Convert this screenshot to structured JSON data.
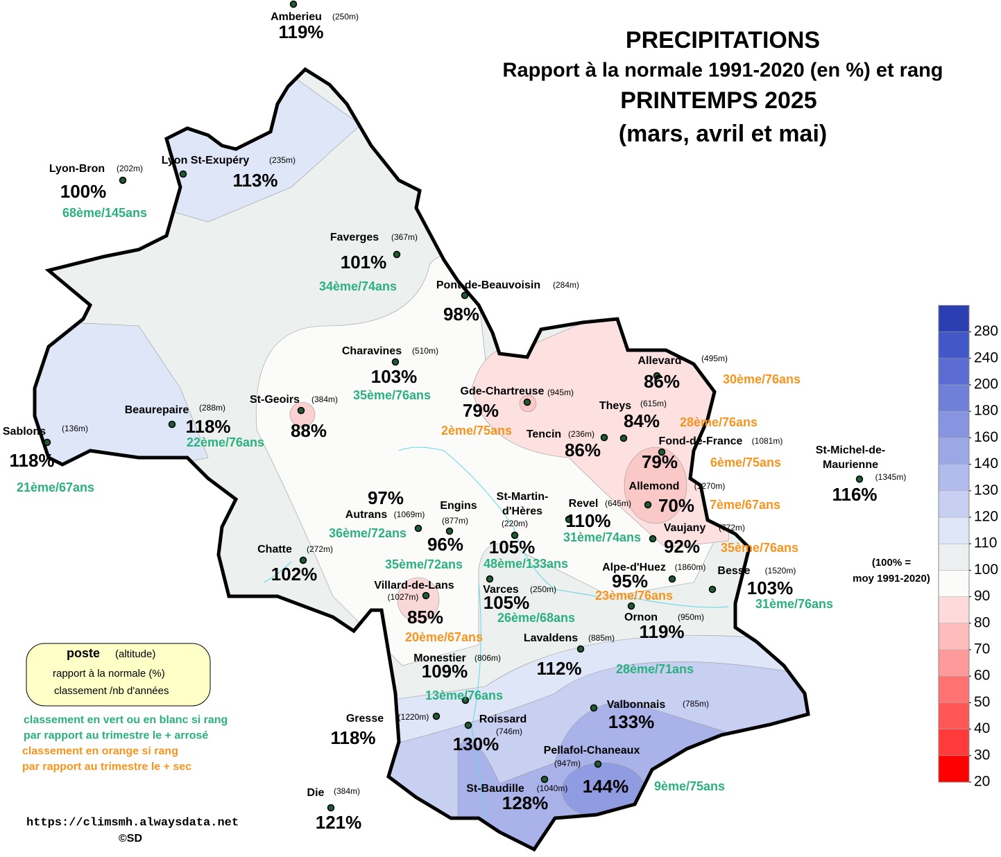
{
  "title": {
    "line1": "PRECIPITATIONS",
    "line2": "Rapport à la normale 1991-2020 (en %) et rang",
    "line3": "PRINTEMPS 2025",
    "line4": "(mars, avril et mai)"
  },
  "stations": [
    {
      "name": "Amberieu",
      "alt": "(250m)",
      "value": "119%"
    },
    {
      "name": "Lyon-Bron",
      "alt": "(202m)",
      "value": "100%",
      "rank": "68ème/145ans",
      "rank_color": "#2bb07f"
    },
    {
      "name": "Lyon St-Exupéry",
      "alt": "(235m)",
      "value": "113%"
    },
    {
      "name": "Faverges",
      "alt": "(367m)",
      "value": "101%",
      "rank": "34ème/74ans",
      "rank_color": "#2bb07f"
    },
    {
      "name": "Pont-de-Beauvoisin",
      "alt": "(284m)",
      "value": "98%"
    },
    {
      "name": "Charavines",
      "alt": "(510m)",
      "value": "103%",
      "rank": "35ème/76ans",
      "rank_color": "#2bb07f"
    },
    {
      "name": "St-Geoirs",
      "alt": "(384m)",
      "value": "88%"
    },
    {
      "name": "Beaurepaire",
      "alt": "(288m)",
      "value": "118%",
      "rank": "22ème/76ans",
      "rank_color": "#2bb07f"
    },
    {
      "name": "Sablons",
      "alt": "(136m)",
      "value": "118%",
      "rank": "21ème/67ans",
      "rank_color": "#2bb07f"
    },
    {
      "name": "Gde-Chartreuse",
      "alt": "(945m)",
      "value": "79%",
      "rank": "2ème/75ans",
      "rank_color": "#f7941d"
    },
    {
      "name": "Allevard",
      "alt": "(495m)",
      "value": "86%",
      "rank": "30ème/76ans",
      "rank_color": "#f7941d"
    },
    {
      "name": "Theys",
      "alt": "(615m)",
      "value": "84%",
      "rank": "28ème/76ans",
      "rank_color": "#f7941d"
    },
    {
      "name": "Tencin",
      "alt": "(236m)",
      "value": "86%"
    },
    {
      "name": "Fond-de-France",
      "alt": "(1081m)",
      "value": "79%",
      "rank": "6ème/75ans",
      "rank_color": "#f7941d"
    },
    {
      "name": "Allemond",
      "alt": "(1270m)",
      "value": "70%",
      "rank": "7ème/67ans",
      "rank_color": "#f7941d"
    },
    {
      "name": "Vaujany",
      "alt": "(772m)",
      "value": "92%",
      "rank": "35ème/76ans",
      "rank_color": "#f7941d"
    },
    {
      "name": [
        "St-Michel-de-",
        "Maurienne"
      ],
      "alt": "(1345m)",
      "value": "116%"
    },
    {
      "name": "Revel",
      "alt": "(645m)",
      "value": "110%",
      "rank": "31ème/74ans",
      "rank_color": "#2bb07f"
    },
    {
      "name": [
        "St-Martin-",
        "d'Hères"
      ],
      "alt": "(220m)",
      "value": "105%",
      "rank": "48ème/133ans",
      "rank_color": "#2bb07f"
    },
    {
      "name": "Autrans",
      "alt": "(1069m)",
      "value": "97%",
      "rank": "36ème/72ans",
      "rank_color": "#2bb07f"
    },
    {
      "name": "Engins",
      "alt": "(877m)",
      "value": "96%",
      "rank": "35ème/72ans",
      "rank_color": "#2bb07f"
    },
    {
      "name": "Chatte",
      "alt": "(272m)",
      "value": "102%"
    },
    {
      "name": "Alpe-d'Huez",
      "alt": "(1860m)",
      "value": "95%",
      "rank": "23ème/76ans",
      "rank_color": "#f7941d"
    },
    {
      "name": "Besse",
      "alt": "(1520m)",
      "value": "103%",
      "rank": "31ème/76ans",
      "rank_color": "#2bb07f"
    },
    {
      "name": "Villard-de-Lans",
      "alt": "(1027m)",
      "value": "85%",
      "rank": "20ème/67ans",
      "rank_color": "#f7941d"
    },
    {
      "name": "Varces",
      "alt": "(250m)",
      "value": "105%",
      "rank": "26ème/68ans",
      "rank_color": "#2bb07f"
    },
    {
      "name": "Ornon",
      "alt": "(950m)",
      "value": "119%"
    },
    {
      "name": "Lavaldens",
      "alt": "(885m)",
      "value": "112%",
      "rank": "28ème/71ans",
      "rank_color": "#2bb07f"
    },
    {
      "name": "Monestier",
      "alt": "(806m)",
      "value": "109%",
      "rank": "13ème/76ans",
      "rank_color": "#2bb07f"
    },
    {
      "name": "Gresse",
      "alt": "(1220m)",
      "value": "118%"
    },
    {
      "name": "Roissard",
      "alt": "(746m)",
      "value": "130%"
    },
    {
      "name": "Valbonnais",
      "alt": "(785m)",
      "value": "133%"
    },
    {
      "name": "Pellafol-Chaneaux",
      "alt": "(947m)",
      "value": "144%",
      "rank": "9ème/75ans",
      "rank_color": "#2bb07f"
    },
    {
      "name": "St-Baudille",
      "alt": "(1040m)",
      "value": "128%"
    },
    {
      "name": "Die",
      "alt": "(384m)",
      "value": "121%"
    }
  ],
  "legend": {
    "poste": "poste",
    "altitude": "(altitude)",
    "line2": "rapport à la normale (%)",
    "line3": "classement /nb d'années"
  },
  "notes": [
    {
      "text": "classement en vert ou en blanc si rang",
      "color": "#2bb07f"
    },
    {
      "text": "par rapport au trimestre le + arrosé",
      "color": "#2bb07f"
    },
    {
      "text": "classement en orange si rang",
      "color": "#f7941d"
    },
    {
      "text": "par rapport au trimestre le + sec",
      "color": "#f7941d"
    }
  ],
  "normal_note": [
    "(100% =",
    "moy 1991-2020)"
  ],
  "footer": {
    "url": "https://climsmh.alwaysdata.net",
    "copyright": "©SD"
  },
  "colorbar": {
    "ticks": [
      20,
      30,
      40,
      50,
      60,
      70,
      80,
      90,
      100,
      110,
      120,
      130,
      140,
      160,
      180,
      200,
      240,
      280
    ],
    "colors": [
      "#ff0000",
      "#ff3a3a",
      "#ff5656",
      "#ff7272",
      "#ff9a9a",
      "#ffbcbc",
      "#ffdada",
      "#fbfbfa",
      "#ecf0f0",
      "#dfe6f8",
      "#c8d0f2",
      "#b2bcec",
      "#9ca8e6",
      "#8795e0",
      "#6e80d8",
      "#5a6cd1",
      "#4258c6",
      "#2b3fb3"
    ]
  }
}
